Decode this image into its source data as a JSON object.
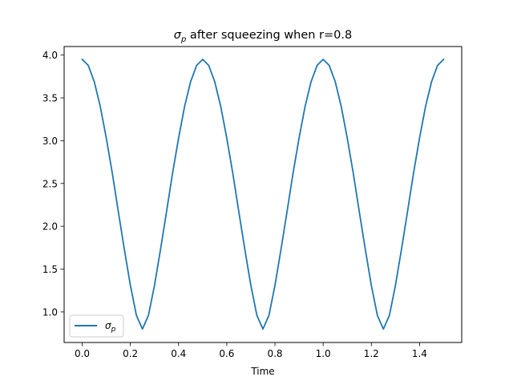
{
  "chart_data": {
    "type": "line",
    "title_symbol": "σ",
    "title_symbol_sub": "p",
    "title_rest": " after squeezing when r=0.8",
    "xlabel": "Time",
    "ylabel": "",
    "xlim": [
      -0.075,
      1.575
    ],
    "ylim": [
      0.643,
      4.1
    ],
    "xticks": [
      0.0,
      0.2,
      0.4,
      0.6,
      0.8,
      1.0,
      1.2,
      1.4
    ],
    "xtick_labels": [
      "0.0",
      "0.2",
      "0.4",
      "0.6",
      "0.8",
      "1.0",
      "1.2",
      "1.4"
    ],
    "yticks": [
      1.0,
      1.5,
      2.0,
      2.5,
      3.0,
      3.5,
      4.0
    ],
    "ytick_labels": [
      "1.0",
      "1.5",
      "2.0",
      "2.5",
      "3.0",
      "3.5",
      "4.0"
    ],
    "grid": false,
    "legend_position": "lower-left",
    "series": [
      {
        "name_symbol": "σ",
        "name_sub": "p",
        "color": "#1f77b4",
        "x": [
          0.0,
          0.025,
          0.05,
          0.075,
          0.1,
          0.125,
          0.15,
          0.175,
          0.2,
          0.225,
          0.25,
          0.275,
          0.3,
          0.325,
          0.35,
          0.375,
          0.4,
          0.425,
          0.45,
          0.475,
          0.5,
          0.525,
          0.55,
          0.575,
          0.6,
          0.625,
          0.65,
          0.675,
          0.7,
          0.725,
          0.75,
          0.775,
          0.8,
          0.825,
          0.85,
          0.875,
          0.9,
          0.925,
          0.95,
          0.975,
          1.0,
          1.025,
          1.05,
          1.075,
          1.1,
          1.125,
          1.15,
          1.175,
          1.2,
          1.225,
          1.25,
          1.275,
          1.3,
          1.325,
          1.35,
          1.375,
          1.4,
          1.425,
          1.45,
          1.475,
          1.5
        ],
        "y": [
          3.95,
          3.88,
          3.69,
          3.4,
          3.03,
          2.62,
          2.17,
          1.73,
          1.31,
          0.96,
          0.8,
          0.96,
          1.31,
          1.73,
          2.17,
          2.62,
          3.03,
          3.4,
          3.69,
          3.88,
          3.95,
          3.88,
          3.69,
          3.4,
          3.03,
          2.62,
          2.17,
          1.73,
          1.31,
          0.96,
          0.8,
          0.96,
          1.31,
          1.73,
          2.17,
          2.62,
          3.03,
          3.4,
          3.69,
          3.88,
          3.95,
          3.88,
          3.69,
          3.4,
          3.03,
          2.62,
          2.17,
          1.73,
          1.31,
          0.96,
          0.8,
          0.96,
          1.31,
          1.73,
          2.17,
          2.62,
          3.03,
          3.4,
          3.69,
          3.88,
          3.95
        ]
      }
    ]
  }
}
